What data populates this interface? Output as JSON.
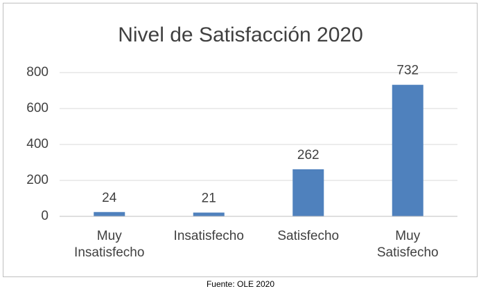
{
  "chart_data": {
    "type": "bar",
    "title": "Nivel de Satisfacción 2020",
    "categories": [
      "Muy Insatisfecho",
      "Insatisfecho",
      "Satisfecho",
      "Muy Satisfecho"
    ],
    "values": [
      24,
      21,
      262,
      732
    ],
    "color": "#4f81bd",
    "ylim": [
      0,
      800
    ],
    "yticks": [
      0,
      200,
      400,
      600,
      800
    ],
    "grid": true,
    "source": "Fuente: OLE 2020"
  }
}
